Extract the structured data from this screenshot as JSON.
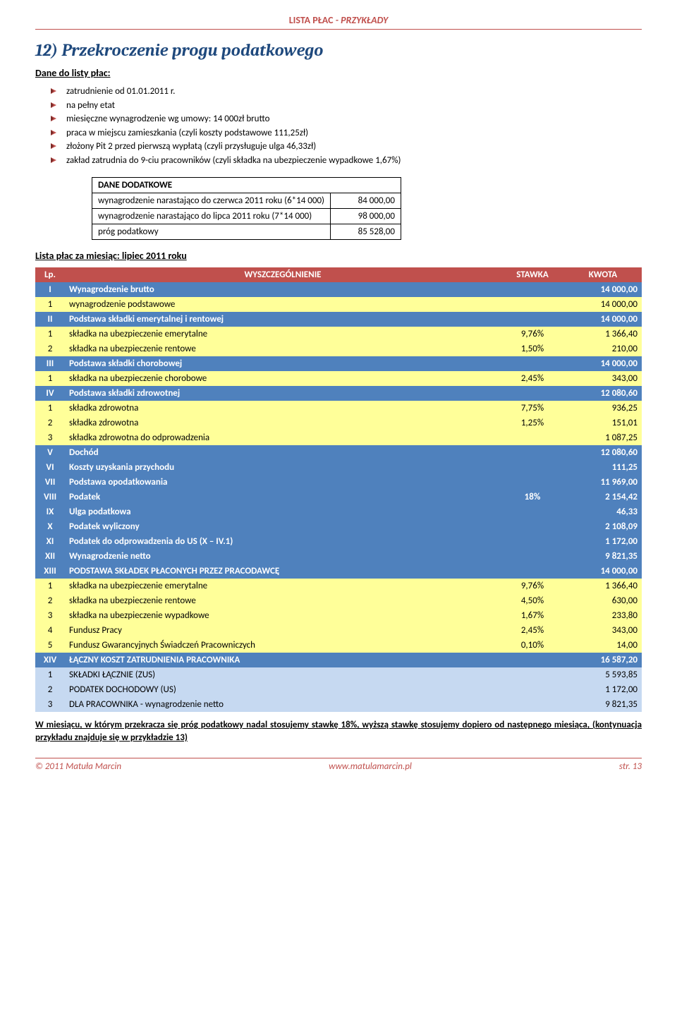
{
  "header": {
    "left": "LISTA PŁAC",
    "right": " - PRZYKŁADY"
  },
  "title": "12)  Przekroczenie progu podatkowego",
  "sub_dane": "Dane do listy płac:",
  "bullets": [
    "zatrudnienie od 01.01.2011 r.",
    "na pełny etat",
    "miesięczne wynagrodzenie wg umowy: 14 000zł brutto",
    "praca w miejscu zamieszkania (czyli koszty podstawowe 111,25zł)",
    "złożony Pit 2 przed pierwszą wypłatą (czyli przysługuje ulga 46,33zł)",
    "zakład zatrudnia do 9-ciu pracowników (czyli składka na ubezpieczenie wypadkowe 1,67%)"
  ],
  "dane": {
    "head": "DANE DODATKOWE",
    "rows": [
      {
        "label": "wynagrodzenie narastająco do czerwca 2011 roku (6*14 000)",
        "val": "84 000,00"
      },
      {
        "label": "wynagrodzenie narastająco do lipca 2011 roku (7*14 000)",
        "val": "98 000,00"
      },
      {
        "label": "próg podatkowy",
        "val": "85 528,00"
      }
    ]
  },
  "list_title": "Lista płac za miesiąc: lipiec 2011 roku",
  "hdr": {
    "lp": "Lp.",
    "desc": "WYSZCZEGÓLNIENIE",
    "rate": "STAWKA",
    "amt": "KWOTA"
  },
  "rows": [
    {
      "cls": "blue",
      "lp": "I",
      "desc": "Wynagrodzenie brutto",
      "rate": "",
      "amt": "14 000,00"
    },
    {
      "cls": "yellow",
      "lp": "1",
      "desc": "wynagrodzenie podstawowe",
      "rate": "",
      "amt": "14 000,00"
    },
    {
      "cls": "blue",
      "lp": "II",
      "desc": "Podstawa składki emerytalnej i rentowej",
      "rate": "",
      "amt": "14 000,00"
    },
    {
      "cls": "yellow",
      "lp": "1",
      "desc": "składka na ubezpieczenie emerytalne",
      "rate": "9,76%",
      "amt": "1 366,40"
    },
    {
      "cls": "yellow",
      "lp": "2",
      "desc": "składka na ubezpieczenie rentowe",
      "rate": "1,50%",
      "amt": "210,00"
    },
    {
      "cls": "blue",
      "lp": "III",
      "desc": "Podstawa składki chorobowej",
      "rate": "",
      "amt": "14 000,00"
    },
    {
      "cls": "yellow",
      "lp": "1",
      "desc": "składka na ubezpieczenie chorobowe",
      "rate": "2,45%",
      "amt": "343,00"
    },
    {
      "cls": "blue",
      "lp": "IV",
      "desc": "Podstawa składki zdrowotnej",
      "rate": "",
      "amt": "12 080,60"
    },
    {
      "cls": "yellow",
      "lp": "1",
      "desc": "składka zdrowotna",
      "rate": "7,75%",
      "amt": "936,25"
    },
    {
      "cls": "yellow",
      "lp": "2",
      "desc": "składka zdrowotna",
      "rate": "1,25%",
      "amt": "151,01"
    },
    {
      "cls": "yellow",
      "lp": "3",
      "desc": "składka zdrowotna do odprowadzenia",
      "rate": "",
      "amt": "1 087,25"
    },
    {
      "cls": "blue",
      "lp": "V",
      "desc": "Dochód",
      "rate": "",
      "amt": "12 080,60"
    },
    {
      "cls": "blue",
      "lp": "VI",
      "desc": "Koszty uzyskania przychodu",
      "rate": "",
      "amt": "111,25"
    },
    {
      "cls": "blue",
      "lp": "VII",
      "desc": "Podstawa opodatkowania",
      "rate": "",
      "amt": "11 969,00"
    },
    {
      "cls": "blue",
      "lp": "VIII",
      "desc": "Podatek",
      "rate": "18%",
      "amt": "2 154,42"
    },
    {
      "cls": "blue",
      "lp": "IX",
      "desc": "Ulga podatkowa",
      "rate": "",
      "amt": "46,33"
    },
    {
      "cls": "blue",
      "lp": "X",
      "desc": "Podatek wyliczony",
      "rate": "",
      "amt": "2 108,09"
    },
    {
      "cls": "blue",
      "lp": "XI",
      "desc": "Podatek do odprowadzenia do US (X – IV.1)",
      "rate": "",
      "amt": "1 172,00"
    },
    {
      "cls": "blue",
      "lp": "XII",
      "desc": "Wynagrodzenie netto",
      "rate": "",
      "amt": "9 821,35"
    },
    {
      "cls": "blue",
      "lp": "XIII",
      "desc": "PODSTAWA SKŁADEK PŁACONYCH PRZEZ PRACODAWCĘ",
      "rate": "",
      "amt": "14 000,00"
    },
    {
      "cls": "yellow",
      "lp": "1",
      "desc": "składka na ubezpieczenie emerytalne",
      "rate": "9,76%",
      "amt": "1 366,40"
    },
    {
      "cls": "yellow",
      "lp": "2",
      "desc": "składka na ubezpieczenie rentowe",
      "rate": "4,50%",
      "amt": "630,00"
    },
    {
      "cls": "yellow",
      "lp": "3",
      "desc": "składka na ubezpieczenie wypadkowe",
      "rate": "1,67%",
      "amt": "233,80"
    },
    {
      "cls": "yellow",
      "lp": "4",
      "desc": "Fundusz Pracy",
      "rate": "2,45%",
      "amt": "343,00"
    },
    {
      "cls": "yellow",
      "lp": "5",
      "desc": "Fundusz Gwarancyjnych Świadczeń Pracowniczych",
      "rate": "0,10%",
      "amt": "14,00"
    },
    {
      "cls": "blue",
      "lp": "XIV",
      "desc": "ŁĄCZNY KOSZT  ZATRUDNIENIA PRACOWNIKA",
      "rate": "",
      "amt": "16 587,20"
    },
    {
      "cls": "lightblue",
      "lp": "1",
      "desc": "SKŁADKI ŁĄCZNIE (ZUS)",
      "rate": "",
      "amt": "5 593,85"
    },
    {
      "cls": "lightblue",
      "lp": "2",
      "desc": "PODATEK DOCHODOWY (US)",
      "rate": "",
      "amt": "1 172,00"
    },
    {
      "cls": "lightblue",
      "lp": "3",
      "desc": "DLA PRACOWNIKA - wynagrodzenie netto",
      "rate": "",
      "amt": "9 821,35"
    }
  ],
  "footnote": "W miesiącu, w którym przekracza się próg podatkowy nadal stosujemy stawkę 18%, wyższą stawkę stosujemy dopiero od następnego miesiąca, (kontynuacja przykładu znajduje się w przykładzie 13)",
  "footer": {
    "left": "© 2011 Matuła Marcin",
    "center": "www.matulamarcin.pl",
    "right": "str. 13"
  }
}
